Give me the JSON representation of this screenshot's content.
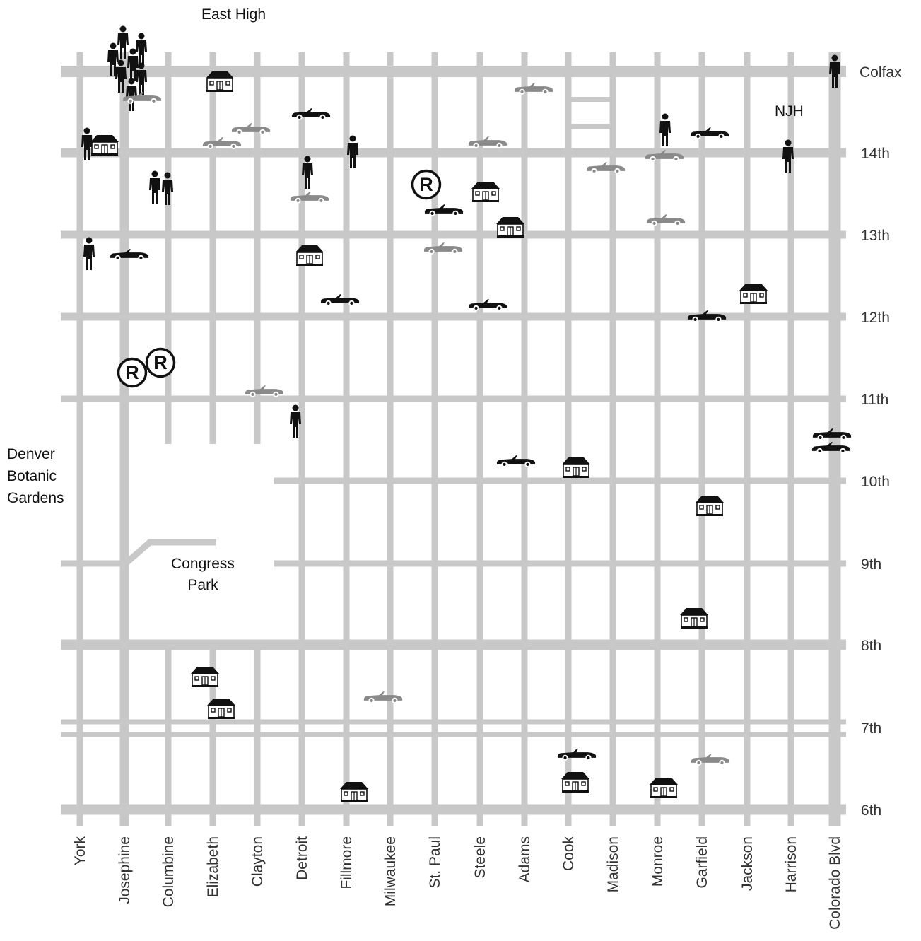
{
  "avenues": [
    "York",
    "Josephine",
    "Columbine",
    "Elizabeth",
    "Clayton",
    "Detroit",
    "Fillmore",
    "Milwaukee",
    "St. Paul",
    "Steele",
    "Adams",
    "Cook",
    "Madison",
    "Monroe",
    "Garfield",
    "Jackson",
    "Harrison",
    "Colorado Blvd"
  ],
  "streets": [
    "Colfax",
    "14th",
    "13th",
    "12th",
    "11th",
    "10th",
    "9th",
    "8th",
    "7th",
    "6th"
  ],
  "places": {
    "east_high": "East High",
    "njh": "NJH",
    "botanic": [
      "Denver",
      "Botanic",
      "Gardens"
    ],
    "congress_park": [
      "Congress",
      "Park"
    ]
  },
  "colors": {
    "road": "#c8c8c8",
    "icon_dark": "#111111",
    "icon_light": "#8a8a8a"
  },
  "legend_icons": [
    "person-icon",
    "house-icon",
    "car-icon",
    "restaurant-icon"
  ]
}
